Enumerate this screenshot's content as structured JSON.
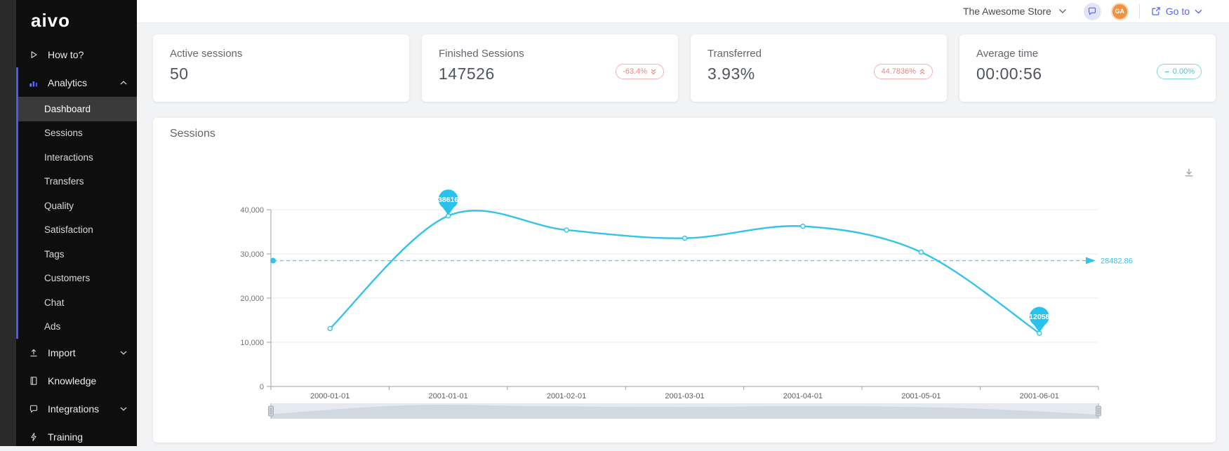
{
  "brand": {
    "logo_text": "aivo"
  },
  "topbar": {
    "store_selector": "The Awesome Store",
    "avatar_initials": "GA",
    "goto_label": "Go to",
    "accent_color": "#5b67ea"
  },
  "sidebar": {
    "accent_color": "#4a5cf0",
    "items": [
      {
        "id": "how-to",
        "label": "How to?",
        "icon": "play",
        "type": "top"
      },
      {
        "id": "analytics",
        "label": "Analytics",
        "icon": "bar-chart",
        "type": "top",
        "chevron": "up",
        "active_section": true
      },
      {
        "id": "dashboard",
        "label": "Dashboard",
        "type": "sub",
        "active": true
      },
      {
        "id": "sessions",
        "label": "Sessions",
        "type": "sub"
      },
      {
        "id": "interactions",
        "label": "Interactions",
        "type": "sub"
      },
      {
        "id": "transfers",
        "label": "Transfers",
        "type": "sub"
      },
      {
        "id": "quality",
        "label": "Quality",
        "type": "sub"
      },
      {
        "id": "satisfaction",
        "label": "Satisfaction",
        "type": "sub"
      },
      {
        "id": "tags",
        "label": "Tags",
        "type": "sub"
      },
      {
        "id": "customers",
        "label": "Customers",
        "type": "sub"
      },
      {
        "id": "chat",
        "label": "Chat",
        "type": "sub"
      },
      {
        "id": "ads",
        "label": "Ads",
        "type": "sub"
      },
      {
        "id": "import",
        "label": "Import",
        "icon": "upload",
        "type": "top",
        "chevron": "down"
      },
      {
        "id": "knowledge",
        "label": "Knowledge",
        "icon": "book",
        "type": "top"
      },
      {
        "id": "integrations",
        "label": "Integrations",
        "icon": "chat",
        "type": "top",
        "chevron": "down"
      },
      {
        "id": "training",
        "label": "Training",
        "icon": "lightning",
        "type": "top"
      }
    ]
  },
  "kpi_cards": [
    {
      "label": "Active sessions",
      "value": "50"
    },
    {
      "label": "Finished Sessions",
      "value": "147526",
      "badge": {
        "text": "-63.4%",
        "direction": "down",
        "style": "red"
      }
    },
    {
      "label": "Transferred",
      "value": "3.93%",
      "badge": {
        "text": "44.7836%",
        "direction": "up",
        "style": "red"
      }
    },
    {
      "label": "Average time",
      "value": "00:00:56",
      "badge": {
        "text": "0.00%",
        "direction": "flat",
        "style": "teal"
      }
    }
  ],
  "chart_panel": {
    "title": "Sessions"
  },
  "chart_data": {
    "type": "line",
    "title": "Sessions",
    "x": [
      "2000-01-01",
      "2001-01-01",
      "2001-02-01",
      "2001-03-01",
      "2001-04-01",
      "2001-05-01",
      "2001-06-01"
    ],
    "series": [
      {
        "name": "Sessions",
        "values": [
          13106,
          38616,
          35400,
          33550,
          36250,
          30400,
          12058
        ]
      }
    ],
    "labeled_points": [
      {
        "x": "2001-01-01",
        "value": 38616
      },
      {
        "x": "2001-06-01",
        "value": 12058
      }
    ],
    "average_line": {
      "value": 28482.86,
      "label": "28482.86"
    },
    "ylim": [
      0,
      40000
    ],
    "yticks": [
      0,
      10000,
      20000,
      30000,
      40000
    ],
    "ytick_labels": [
      "0",
      "10,000",
      "20,000",
      "30,000",
      "40,000"
    ],
    "grid": true,
    "legend": false,
    "line_color": "#35c3e8",
    "pin_color": "#29c2ea",
    "average_color": "#55cdea",
    "has_navigator": true
  }
}
